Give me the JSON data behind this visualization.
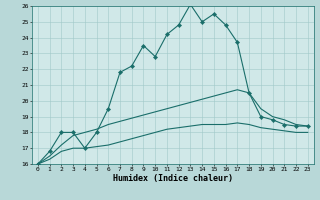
{
  "xlabel": "Humidex (Indice chaleur)",
  "bg_color": "#b8d8d8",
  "plot_bg_color": "#d0e8e8",
  "line_color": "#1a6e6a",
  "grid_color": "#a0c8c8",
  "x_main": [
    0,
    1,
    2,
    3,
    4,
    5,
    6,
    7,
    8,
    9,
    10,
    11,
    12,
    13,
    14,
    15,
    16,
    17,
    18,
    19,
    20,
    21,
    22,
    23
  ],
  "y_main": [
    16.0,
    16.8,
    18.0,
    18.0,
    17.0,
    18.0,
    19.5,
    21.8,
    22.2,
    23.5,
    22.8,
    24.2,
    24.8,
    26.1,
    25.0,
    25.5,
    24.8,
    23.7,
    20.5,
    19.0,
    18.8,
    18.5,
    18.4,
    18.4
  ],
  "x_upper": [
    0,
    1,
    2,
    3,
    4,
    5,
    6,
    7,
    8,
    9,
    10,
    11,
    12,
    13,
    14,
    15,
    16,
    17,
    18,
    19,
    20,
    21,
    22,
    23
  ],
  "y_upper": [
    16.0,
    16.5,
    17.2,
    17.8,
    18.0,
    18.2,
    18.5,
    18.7,
    18.9,
    19.1,
    19.3,
    19.5,
    19.7,
    19.9,
    20.1,
    20.3,
    20.5,
    20.7,
    20.5,
    19.5,
    19.0,
    18.8,
    18.5,
    18.4
  ],
  "x_lower": [
    0,
    1,
    2,
    3,
    4,
    5,
    6,
    7,
    8,
    9,
    10,
    11,
    12,
    13,
    14,
    15,
    16,
    17,
    18,
    19,
    20,
    21,
    22,
    23
  ],
  "y_lower": [
    16.0,
    16.3,
    16.8,
    17.0,
    17.0,
    17.1,
    17.2,
    17.4,
    17.6,
    17.8,
    18.0,
    18.2,
    18.3,
    18.4,
    18.5,
    18.5,
    18.5,
    18.6,
    18.5,
    18.3,
    18.2,
    18.1,
    18.0,
    18.0
  ],
  "ylim": [
    16,
    26
  ],
  "xlim": [
    -0.5,
    23.5
  ],
  "yticks": [
    16,
    17,
    18,
    19,
    20,
    21,
    22,
    23,
    24,
    25,
    26
  ],
  "xticks": [
    0,
    1,
    2,
    3,
    4,
    5,
    6,
    7,
    8,
    9,
    10,
    11,
    12,
    13,
    14,
    15,
    16,
    17,
    18,
    19,
    20,
    21,
    22,
    23
  ],
  "tick_fontsize": 4.5,
  "xlabel_fontsize": 6.0,
  "marker_size": 2.2,
  "line_width": 0.8
}
